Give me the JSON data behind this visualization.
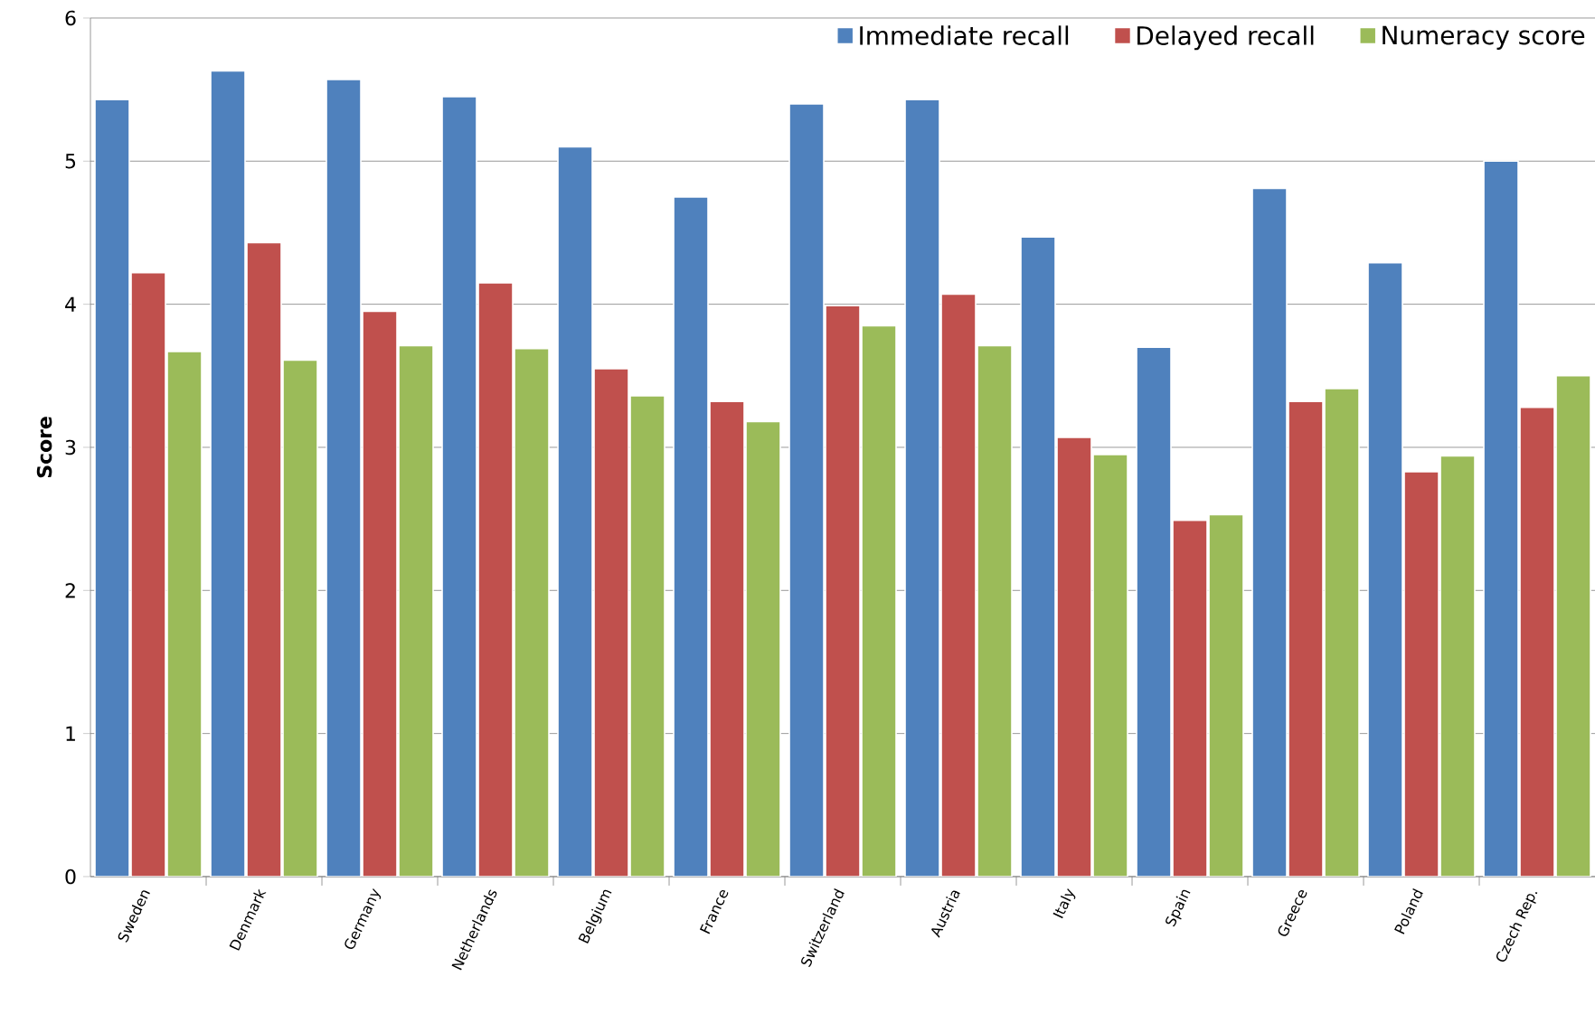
{
  "chart_data": {
    "type": "bar",
    "ylabel": "Score",
    "categories": [
      "Sweden",
      "Denmark",
      "Germany",
      "Netherlands",
      "Belgium",
      "France",
      "Switzerland",
      "Austria",
      "Italy",
      "Spain",
      "Greece",
      "Poland",
      "Czech Rep."
    ],
    "series": [
      {
        "name": "Immediate recall",
        "color": "#4f81bd",
        "values": [
          5.43,
          5.63,
          5.57,
          5.45,
          5.1,
          4.75,
          5.4,
          5.43,
          4.47,
          3.7,
          4.81,
          4.29,
          5.0
        ]
      },
      {
        "name": "Delayed recall",
        "color": "#c0504d",
        "values": [
          4.22,
          4.43,
          3.95,
          4.15,
          3.55,
          3.32,
          3.99,
          4.07,
          3.07,
          2.49,
          3.32,
          2.83,
          3.28
        ]
      },
      {
        "name": "Numeracy score",
        "color": "#9bbb59",
        "values": [
          3.67,
          3.61,
          3.71,
          3.69,
          3.36,
          3.18,
          3.85,
          3.71,
          2.95,
          2.53,
          3.41,
          2.94,
          3.5
        ]
      }
    ],
    "ylim": [
      0,
      6
    ],
    "yticks": [
      0,
      1,
      2,
      3,
      4,
      5,
      6
    ],
    "grid": "y",
    "legend": "top right"
  }
}
